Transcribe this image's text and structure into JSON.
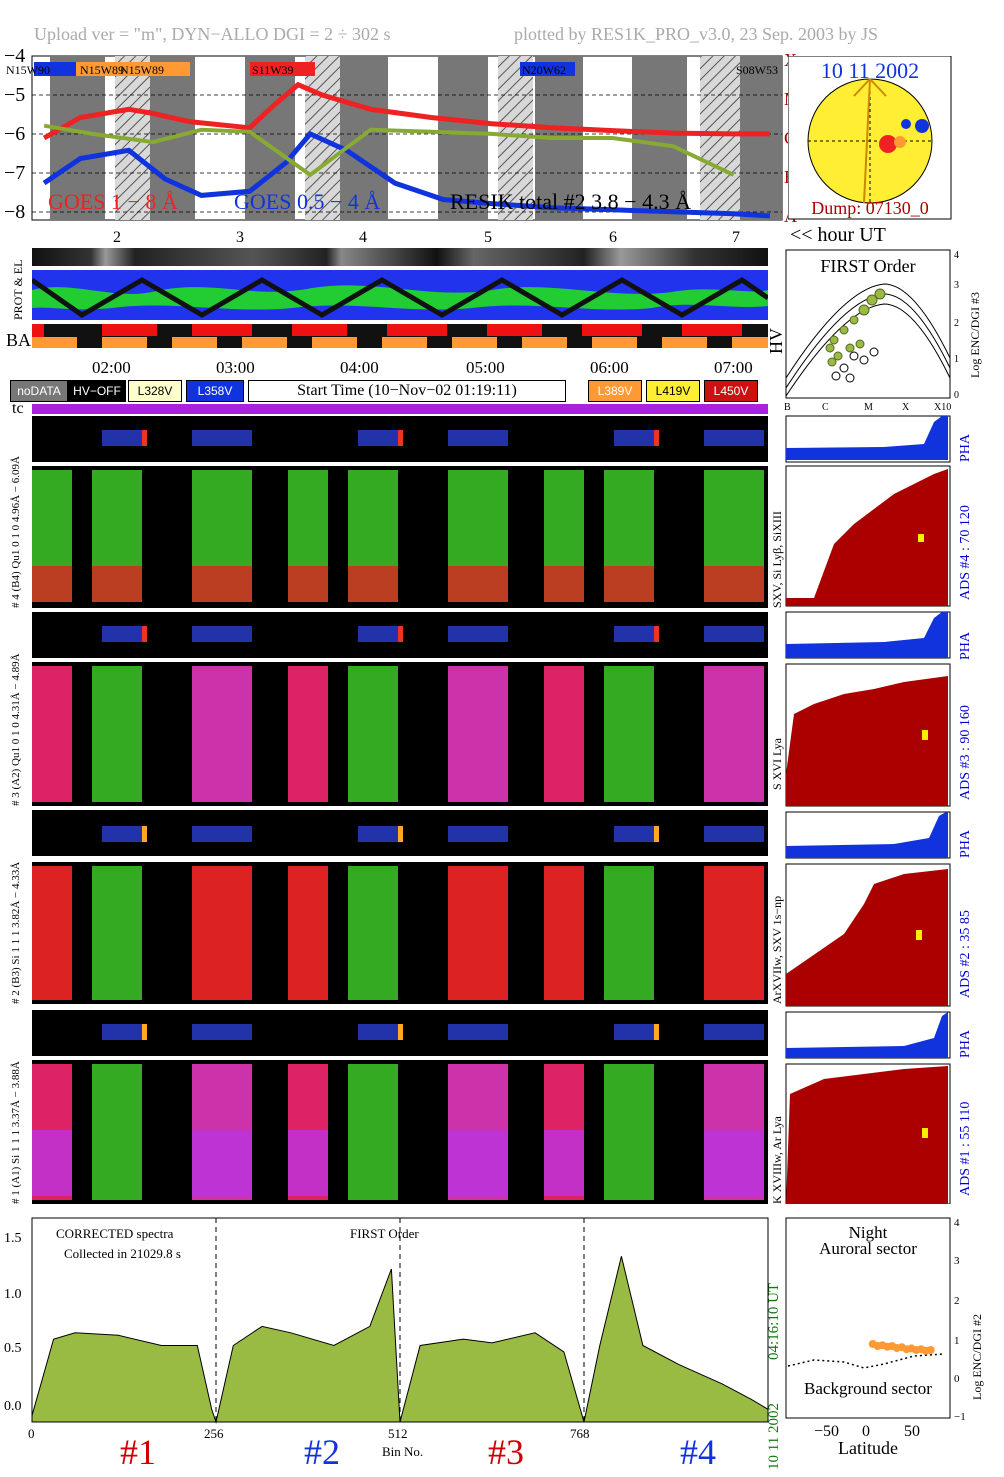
{
  "header": {
    "left": "Upload ver = \"m\", DYN−ALLO DGI =   2 ÷ 302 s",
    "right": "plotted by RES1K_PRO_v3.0, 23 Sep. 2003 by JS"
  },
  "goes": {
    "y_ticks": [
      "−4",
      "−5",
      "−6",
      "−7",
      "−8"
    ],
    "class_labels": [
      "X",
      "M",
      "C",
      "B",
      "A"
    ],
    "hour_ticks": [
      "2",
      "3",
      "4",
      "5",
      "6",
      "7"
    ],
    "hour_axis_label": "<< hour UT",
    "legend_goes18": "GOES 1 − 8 Å",
    "legend_goes054": "GOES 0.5 − 4 Å",
    "legend_resik": "RESIK total #2  3.8 − 4.3 Å",
    "regions": [
      "N15W90",
      "N15W89",
      "N15W89",
      "S11W39",
      "N20W62",
      "S08W53"
    ],
    "colors": {
      "goes18": "#ee2222",
      "goes054": "#1133dd",
      "resik": "#88aa33",
      "resik_alt": "#ff9933"
    }
  },
  "sun": {
    "date": "10 11 2002",
    "dump": "Dump: 07130_0"
  },
  "status_rows": {
    "el_label": "PROT & EL",
    "ba_label": "BA",
    "hv_label": "HV",
    "time_ticks": [
      "02:00",
      "03:00",
      "04:00",
      "05:00",
      "06:00",
      "07:00"
    ]
  },
  "legend_badges": {
    "nodata": "noDATA",
    "hvoff": "HV−OFF",
    "v328": "L328V",
    "v358": "L358V",
    "start_time": "Start Time (10−Nov−02 01:19:11)",
    "v389": "L389V",
    "v419": "L419V",
    "v450": "L450V"
  },
  "first_order": {
    "title": "FIRST Order",
    "ylabel": "Log ENC/DGI #3",
    "y_ticks": [
      "4",
      "3",
      "2",
      "1",
      "0"
    ],
    "x_ticks": [
      "B",
      "C",
      "M",
      "X",
      "X10"
    ]
  },
  "tc_label": "tc",
  "channels": [
    {
      "pha_label": "# 4 (B4) Qu1 0 1 0  4.96Å − 6.09Å",
      "ads": "ADS #4 :   70 120",
      "lines": "SXV, Si Lyβ, SiXIII",
      "pha_tag": "PHA"
    },
    {
      "pha_label": "# 3 (A2) Qu1 0 1 0  4.31Å − 4.89Å",
      "ads": "ADS #3 :   90 160",
      "lines": "S XVI Lya",
      "pha_tag": "PHA"
    },
    {
      "pha_label": "# 2 (B3) Si 1 1 1  3.82Å − 4.33Å",
      "ads": "ADS #2 :   35  85",
      "lines": "ArXVIIw, SXV 1s−np",
      "pha_tag": "PHA"
    },
    {
      "pha_label": "# 1 (A1) Si 1 1 1  3.37Å − 3.88Å",
      "ads": "ADS #1 :   55 110",
      "lines": "K XVIIIw, Ar Lya",
      "pha_tag": "PHA"
    }
  ],
  "spectrum": {
    "annot1": "CORRECTED spectra",
    "annot2": "Collected in 21029.8 s",
    "order": "FIRST Order",
    "y_ticks": [
      "0.0",
      "0.5",
      "1.0",
      "1.5"
    ],
    "x_ticks": [
      "0",
      "256",
      "512",
      "768"
    ],
    "xlabel": "Bin No.",
    "side_time": "04:16:10 UT",
    "side_date": "10 11 2002",
    "channels": [
      "#1",
      "#2",
      "#3",
      "#4"
    ]
  },
  "latitude": {
    "title1": "Night",
    "title2": "Auroral sector",
    "bottom": "Background sector",
    "xlabel": "Latitude",
    "ylabel": "Log ENC/DGI #2",
    "x_ticks": [
      "−50",
      "0",
      "50"
    ],
    "y_ticks": [
      "4",
      "3",
      "2",
      "1",
      "0",
      "−1"
    ]
  },
  "chart_data": [
    {
      "type": "line",
      "title": "",
      "x_unit": "hour UT",
      "ylim": [
        -8,
        -4
      ],
      "series": [
        {
          "name": "GOES 1 − 8 Å",
          "x": [
            1.3,
            1.6,
            2.0,
            2.2,
            2.5,
            3.0,
            3.2,
            3.4,
            3.6,
            4.0,
            4.5,
            5.0,
            5.5,
            6.0,
            6.5,
            7.0,
            7.3
          ],
          "y": [
            -6.0,
            -5.5,
            -5.3,
            -5.4,
            -5.6,
            -5.75,
            -5.2,
            -4.7,
            -4.95,
            -5.3,
            -5.5,
            -5.65,
            -5.75,
            -5.82,
            -5.88,
            -5.9,
            -5.9
          ]
        },
        {
          "name": "GOES 0.5 − 4 Å",
          "x": [
            1.3,
            1.6,
            2.0,
            2.3,
            2.6,
            3.0,
            3.3,
            3.5,
            3.8,
            4.2,
            4.6,
            5.0,
            5.5,
            6.0,
            6.5,
            7.0,
            7.3
          ],
          "y": [
            -7.1,
            -6.5,
            -6.3,
            -7.0,
            -7.4,
            -7.3,
            -6.6,
            -5.9,
            -6.3,
            -7.1,
            -7.5,
            -7.6,
            -7.7,
            -7.75,
            -7.8,
            -7.85,
            -7.9
          ]
        },
        {
          "name": "RESIK total #2  3.8 − 4.3 Å",
          "x": [
            1.3,
            1.7,
            2.2,
            2.6,
            3.0,
            3.5,
            4.0,
            4.5,
            5.0,
            5.5,
            6.0,
            6.5,
            7.0
          ],
          "y": [
            -5.7,
            -5.9,
            -6.1,
            -5.8,
            -5.85,
            -6.9,
            -5.8,
            -5.85,
            -5.9,
            -6.0,
            -6.0,
            -6.2,
            -6.9
          ]
        }
      ]
    },
    {
      "type": "area",
      "title": "",
      "xlabel": "Bin No.",
      "xlim": [
        0,
        1024
      ],
      "ylim": [
        0,
        1.6
      ],
      "x": [
        0,
        30,
        60,
        120,
        180,
        230,
        250,
        256,
        280,
        320,
        360,
        420,
        470,
        500,
        512,
        540,
        600,
        640,
        700,
        740,
        768,
        790,
        820,
        850,
        900,
        960,
        1000,
        1024
      ],
      "y": [
        0.05,
        0.65,
        0.7,
        0.68,
        0.6,
        0.6,
        0.1,
        0.0,
        0.6,
        0.75,
        0.7,
        0.6,
        0.75,
        1.2,
        0.0,
        0.6,
        0.65,
        0.62,
        0.7,
        0.55,
        0.0,
        0.6,
        1.3,
        0.6,
        0.45,
        0.3,
        0.18,
        0.1
      ]
    },
    {
      "type": "scatter",
      "title": "",
      "xlabel": "Latitude",
      "ylabel": "Log ENC/DGI #2",
      "xlim": [
        -85,
        85
      ],
      "ylim": [
        -1,
        4
      ],
      "series": [
        {
          "name": "",
          "x": [
            5,
            10,
            15,
            20,
            25,
            30,
            35,
            40,
            45,
            50,
            55,
            60,
            65
          ],
          "y": [
            0.85,
            0.8,
            0.82,
            0.78,
            0.8,
            0.75,
            0.77,
            0.72,
            0.74,
            0.7,
            0.72,
            0.68,
            0.7
          ]
        }
      ]
    }
  ]
}
